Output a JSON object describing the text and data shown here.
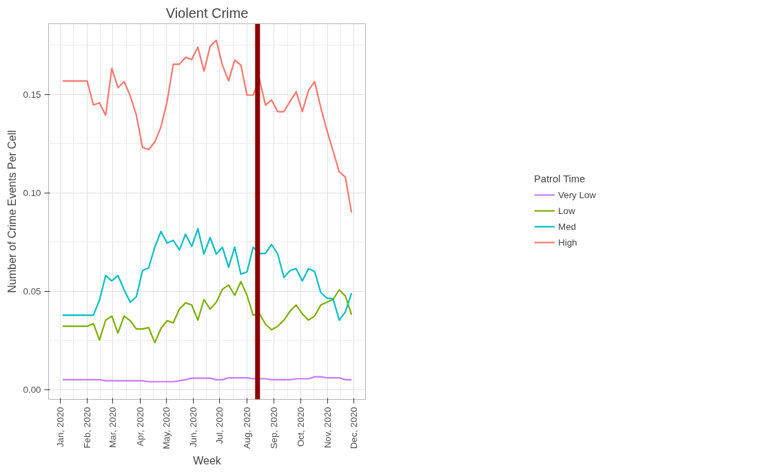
{
  "chart_data": {
    "type": "line",
    "title": "Violent Crime",
    "xlabel": "Week",
    "ylabel": "Number of Crime Events Per Cell",
    "legend_title": "Patrol Time",
    "x": [
      "2020-01-04",
      "2020-01-11",
      "2020-01-18",
      "2020-01-25",
      "2020-02-01",
      "2020-02-08",
      "2020-02-15",
      "2020-02-22",
      "2020-02-29",
      "2020-03-07",
      "2020-03-14",
      "2020-03-21",
      "2020-03-28",
      "2020-04-04",
      "2020-04-11",
      "2020-04-18",
      "2020-04-25",
      "2020-05-02",
      "2020-05-09",
      "2020-05-16",
      "2020-05-23",
      "2020-05-30",
      "2020-06-06",
      "2020-06-13",
      "2020-06-20",
      "2020-06-27",
      "2020-07-04",
      "2020-07-11",
      "2020-07-18",
      "2020-07-25",
      "2020-08-01",
      "2020-08-08",
      "2020-08-15",
      "2020-08-22",
      "2020-08-29",
      "2020-09-05",
      "2020-09-12",
      "2020-09-19",
      "2020-09-26",
      "2020-10-03",
      "2020-10-10",
      "2020-10-17",
      "2020-10-24",
      "2020-10-31",
      "2020-11-07",
      "2020-11-14",
      "2020-11-21",
      "2020-11-28"
    ],
    "series": [
      {
        "name": "Very Low",
        "color": "#c77cff",
        "values": [
          0.005,
          0.005,
          0.005,
          0.005,
          0.005,
          0.005,
          0.005,
          0.0045,
          0.0045,
          0.0045,
          0.0045,
          0.0045,
          0.0045,
          0.0045,
          0.004,
          0.004,
          0.004,
          0.004,
          0.004,
          0.0045,
          0.005,
          0.0058,
          0.0058,
          0.0058,
          0.0058,
          0.005,
          0.005,
          0.006,
          0.006,
          0.006,
          0.006,
          0.0055,
          0.0055,
          0.0055,
          0.005,
          0.005,
          0.005,
          0.005,
          0.0055,
          0.0055,
          0.0055,
          0.0065,
          0.0065,
          0.006,
          0.006,
          0.006,
          0.005,
          0.005
        ]
      },
      {
        "name": "Low",
        "color": "#7cae00",
        "values": [
          0.0322,
          0.0322,
          0.0322,
          0.0322,
          0.0322,
          0.0336,
          0.0252,
          0.0353,
          0.0374,
          0.0287,
          0.0374,
          0.035,
          0.0308,
          0.0308,
          0.0315,
          0.0238,
          0.0311,
          0.035,
          0.0339,
          0.0409,
          0.0441,
          0.043,
          0.0353,
          0.0458,
          0.0409,
          0.0444,
          0.051,
          0.0531,
          0.0479,
          0.0549,
          0.0479,
          0.0378,
          0.0388,
          0.0332,
          0.0304,
          0.0322,
          0.0353,
          0.0399,
          0.043,
          0.0385,
          0.0353,
          0.0374,
          0.043,
          0.0444,
          0.0458,
          0.0507,
          0.0476,
          0.0381
        ]
      },
      {
        "name": "Med",
        "color": "#00bfc4",
        "values": [
          0.0378,
          0.0378,
          0.0378,
          0.0378,
          0.0378,
          0.0378,
          0.0455,
          0.058,
          0.0552,
          0.058,
          0.0507,
          0.0444,
          0.0472,
          0.0605,
          0.0619,
          0.0724,
          0.0804,
          0.0745,
          0.0759,
          0.071,
          0.079,
          0.0727,
          0.0818,
          0.0689,
          0.0773,
          0.0689,
          0.0724,
          0.0622,
          0.0724,
          0.0587,
          0.0598,
          0.0724,
          0.0692,
          0.0692,
          0.0738,
          0.0689,
          0.057,
          0.0605,
          0.0615,
          0.0552,
          0.0615,
          0.0601,
          0.0493,
          0.0465,
          0.0462,
          0.0353,
          0.0395,
          0.049
        ]
      },
      {
        "name": "High",
        "color": "#f8766d",
        "values": [
          0.1569,
          0.1569,
          0.1569,
          0.1569,
          0.1569,
          0.1447,
          0.1458,
          0.1395,
          0.1633,
          0.1535,
          0.1566,
          0.1493,
          0.1395,
          0.1231,
          0.122,
          0.1259,
          0.1336,
          0.1465,
          0.1654,
          0.1654,
          0.1689,
          0.1678,
          0.1741,
          0.1619,
          0.1745,
          0.1776,
          0.165,
          0.157,
          0.1675,
          0.165,
          0.1497,
          0.1497,
          0.158,
          0.1447,
          0.1472,
          0.1413,
          0.1413,
          0.1465,
          0.1514,
          0.1413,
          0.1521,
          0.1566,
          0.1434,
          0.1318,
          0.1213,
          0.1108,
          0.108,
          0.09
        ]
      }
    ],
    "xlim": [
      "2019-12-19",
      "2020-12-14"
    ],
    "ylim": [
      -0.005,
      0.186
    ],
    "xticks": [
      {
        "value": "2020-01-01",
        "label": "Jan, 2020"
      },
      {
        "value": "2020-02-01",
        "label": "Feb, 2020"
      },
      {
        "value": "2020-03-01",
        "label": "Mar, 2020"
      },
      {
        "value": "2020-04-01",
        "label": "Apr, 2020"
      },
      {
        "value": "2020-05-01",
        "label": "May, 2020"
      },
      {
        "value": "2020-06-01",
        "label": "Jun, 2020"
      },
      {
        "value": "2020-07-01",
        "label": "Jul, 2020"
      },
      {
        "value": "2020-08-01",
        "label": "Aug, 2020"
      },
      {
        "value": "2020-09-01",
        "label": "Sep, 2020"
      },
      {
        "value": "2020-10-01",
        "label": "Oct, 2020"
      },
      {
        "value": "2020-11-01",
        "label": "Nov, 2020"
      },
      {
        "value": "2020-12-01",
        "label": "Dec, 2020"
      }
    ],
    "yticks": [
      {
        "value": 0,
        "label": "0.00"
      },
      {
        "value": 0.05,
        "label": "0.05"
      },
      {
        "value": 0.1,
        "label": "0.10"
      },
      {
        "value": 0.15,
        "label": "0.15"
      }
    ],
    "ref_lines": [
      {
        "axis": "x",
        "value": "2020-08-13",
        "color": "#8b0000"
      }
    ],
    "grid": true,
    "legend": "right",
    "marker": "none",
    "line_style": "solid"
  }
}
